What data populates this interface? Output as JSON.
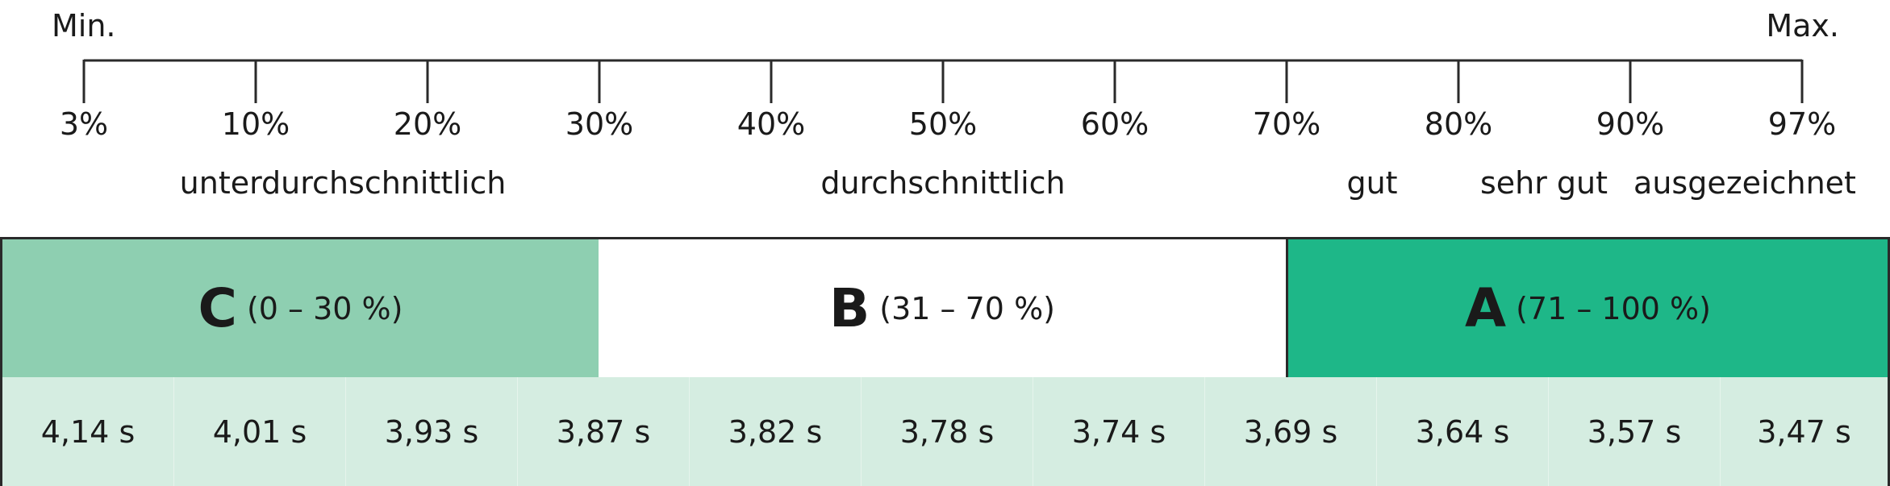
{
  "scale": {
    "min_label": "Min.",
    "max_label": "Max.",
    "ticks": [
      "3%",
      "10%",
      "20%",
      "30%",
      "40%",
      "50%",
      "60%",
      "70%",
      "80%",
      "90%",
      "97%"
    ],
    "categories": [
      "unterdurchschnittlich",
      "durchschnittlich",
      "gut",
      "sehr gut",
      "ausgezeichnet"
    ]
  },
  "grades": [
    {
      "letter": "C",
      "range": "(0 – 30 %)",
      "color": "#8ecfb1"
    },
    {
      "letter": "B",
      "range": "(31 – 70 %)",
      "color": "#ffffff"
    },
    {
      "letter": "A",
      "range": "(71 – 100 %)",
      "color": "#1eb788"
    }
  ],
  "times": [
    "4,14 s",
    "4,01 s",
    "3,93 s",
    "3,87 s",
    "3,82 s",
    "3,78 s",
    "3,74 s",
    "3,69 s",
    "3,64 s",
    "3,57 s",
    "3,47 s"
  ],
  "colors": {
    "line": "#2a2a2a",
    "time_row": "#d5ede1"
  }
}
